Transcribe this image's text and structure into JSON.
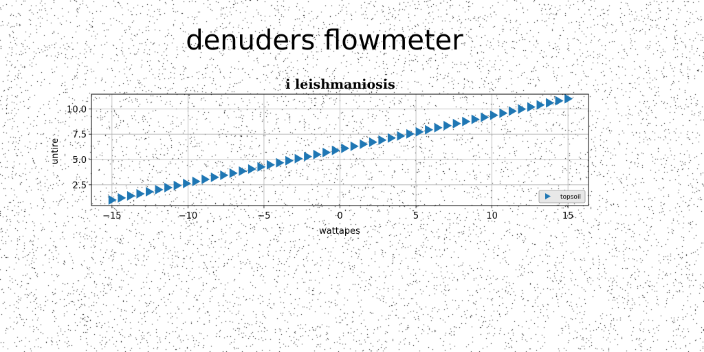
{
  "figure": {
    "suptitle": "denuders flowmeter"
  },
  "chart_data": {
    "type": "scatter",
    "title": "i leishmaniosis",
    "xlabel": "wattapes",
    "ylabel": "untire",
    "xlim": [
      -16.35,
      16.35
    ],
    "ylim": [
      0.45,
      11.45
    ],
    "xticks": [
      -15,
      -10,
      -5,
      0,
      5,
      10,
      15
    ],
    "xtick_labels": [
      "−15",
      "−10",
      "−5",
      "0",
      "5",
      "10",
      "15"
    ],
    "yticks": [
      2.5,
      5.0,
      7.5,
      10.0
    ],
    "ytick_labels": [
      "2.5",
      "5.0",
      "7.5",
      "10.0"
    ],
    "grid": true,
    "legend_placement": "lower-right",
    "series": [
      {
        "name": "topsoil",
        "marker": "triangle-right",
        "color": "#1f77b4",
        "x_start": -15,
        "x_end": 15,
        "y_start": 1.0,
        "y_end": 11.0,
        "n_points": 50
      }
    ]
  }
}
